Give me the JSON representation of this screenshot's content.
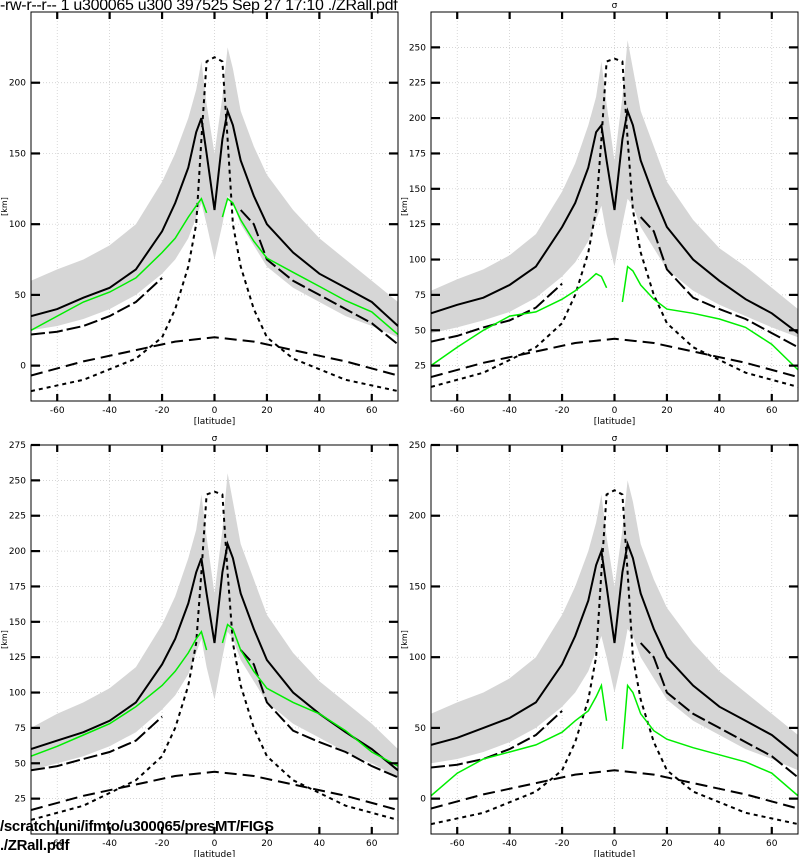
{
  "header": "-rw-r--r-- 1 u300065 u300 397525 Sep 27 17:10 ./ZRall.pdf",
  "footer_path": "/scratch/uni/ifmto/u300065/presMT/FIGS",
  "footer_file": "./ZRall.pdf",
  "colors": {
    "model": "#000000",
    "obs": "#00ee00",
    "band": "#d6d6d6",
    "reference": "#000000"
  },
  "chart_data": [
    {
      "type": "line",
      "panel": "top-left",
      "title": "",
      "xlabel": "[latitude]",
      "ylabel": "[km]",
      "xlim": [
        -70,
        70
      ],
      "ylim": [
        -25,
        250
      ],
      "xticks": [
        -60,
        -40,
        -20,
        0,
        20,
        40,
        60
      ],
      "yticks": [
        0,
        50,
        100,
        150,
        200
      ],
      "grid": true,
      "x": [
        -70,
        -60,
        -50,
        -40,
        -30,
        -20,
        -15,
        -10,
        -7,
        -5,
        -3,
        0,
        3,
        5,
        7,
        10,
        15,
        20,
        30,
        40,
        50,
        60,
        70
      ],
      "band_upper": [
        60,
        68,
        75,
        85,
        100,
        130,
        150,
        175,
        195,
        215,
        185,
        150,
        190,
        225,
        210,
        180,
        155,
        135,
        110,
        90,
        75,
        60,
        45
      ],
      "band_lower": [
        25,
        28,
        33,
        40,
        50,
        65,
        75,
        90,
        105,
        115,
        100,
        75,
        100,
        120,
        115,
        100,
        85,
        70,
        55,
        45,
        35,
        28,
        20
      ],
      "model_mean": [
        35,
        40,
        48,
        55,
        68,
        95,
        115,
        140,
        165,
        175,
        150,
        110,
        160,
        180,
        170,
        145,
        120,
        100,
        80,
        65,
        55,
        45,
        28
      ],
      "model_lower": [
        22,
        24,
        28,
        35,
        45,
        62,
        null,
        null,
        null,
        null,
        null,
        null,
        null,
        null,
        null,
        110,
        100,
        75,
        60,
        50,
        40,
        30,
        15
      ],
      "obs": [
        25,
        35,
        45,
        52,
        62,
        80,
        90,
        105,
        113,
        118,
        108,
        null,
        105,
        118,
        115,
        103,
        88,
        76,
        66,
        56,
        46,
        38,
        22
      ],
      "reference_curves": [
        {
          "x": [
            -70,
            -50,
            -30,
            -20,
            -15,
            -10,
            -7,
            -5,
            -3,
            0,
            3,
            5,
            7,
            10,
            15,
            20,
            30,
            50,
            70
          ],
          "y": [
            -18,
            -10,
            5,
            20,
            40,
            70,
            100,
            160,
            215,
            218,
            215,
            160,
            100,
            70,
            40,
            20,
            5,
            -10,
            -18
          ]
        },
        {
          "x": [
            -70,
            -50,
            -30,
            -15,
            0,
            15,
            30,
            50,
            70
          ],
          "y": [
            -7,
            3,
            11,
            17,
            20,
            17,
            11,
            3,
            -7
          ]
        }
      ]
    },
    {
      "type": "line",
      "panel": "top-right",
      "title": "σ",
      "xlabel": "[latitude]",
      "ylabel": "[km]",
      "xlim": [
        -70,
        70
      ],
      "ylim": [
        0,
        275
      ],
      "xticks": [
        -60,
        -40,
        -20,
        0,
        20,
        40,
        60
      ],
      "yticks": [
        25,
        50,
        75,
        100,
        125,
        150,
        175,
        200,
        225,
        250
      ],
      "grid": true,
      "x": [
        -70,
        -60,
        -50,
        -40,
        -30,
        -20,
        -15,
        -10,
        -7,
        -5,
        -3,
        0,
        3,
        5,
        7,
        10,
        15,
        20,
        30,
        40,
        50,
        60,
        70
      ],
      "band_upper": [
        78,
        86,
        93,
        103,
        118,
        148,
        168,
        195,
        215,
        240,
        210,
        170,
        215,
        255,
        235,
        205,
        180,
        155,
        128,
        108,
        95,
        80,
        65
      ],
      "band_lower": [
        48,
        52,
        57,
        63,
        73,
        88,
        98,
        113,
        128,
        138,
        118,
        95,
        125,
        143,
        138,
        123,
        108,
        93,
        78,
        68,
        60,
        52,
        45
      ],
      "model_mean": [
        62,
        68,
        73,
        82,
        95,
        123,
        140,
        165,
        190,
        195,
        170,
        135,
        185,
        205,
        195,
        170,
        145,
        123,
        100,
        85,
        72,
        62,
        48
      ],
      "model_lower": [
        42,
        46,
        52,
        57,
        66,
        83,
        null,
        null,
        null,
        null,
        null,
        null,
        null,
        null,
        null,
        130,
        120,
        93,
        73,
        65,
        58,
        48,
        38
      ],
      "obs": [
        25,
        38,
        50,
        60,
        63,
        72,
        78,
        85,
        90,
        88,
        80,
        null,
        70,
        95,
        92,
        82,
        72,
        65,
        62,
        58,
        52,
        40,
        22
      ],
      "reference_curves": [
        {
          "x": [
            -70,
            -50,
            -30,
            -20,
            -15,
            -10,
            -7,
            -5,
            -3,
            0,
            3,
            5,
            7,
            10,
            15,
            20,
            30,
            50,
            70
          ],
          "y": [
            10,
            20,
            38,
            55,
            75,
            105,
            135,
            185,
            240,
            242,
            240,
            185,
            135,
            105,
            75,
            55,
            38,
            20,
            10
          ]
        },
        {
          "x": [
            -70,
            -50,
            -30,
            -15,
            0,
            15,
            30,
            50,
            70
          ],
          "y": [
            17,
            27,
            35,
            41,
            44,
            41,
            35,
            27,
            17
          ]
        }
      ]
    },
    {
      "type": "line",
      "panel": "bottom-left",
      "title": "σ",
      "xlabel": "[latitude]",
      "ylabel": "[km]",
      "xlim": [
        -70,
        70
      ],
      "ylim": [
        0,
        275
      ],
      "xticks": [
        -60,
        -40,
        -20,
        0,
        20,
        40,
        60
      ],
      "yticks": [
        25,
        50,
        75,
        100,
        125,
        150,
        175,
        200,
        225,
        250,
        275
      ],
      "grid": true,
      "x": [
        -70,
        -60,
        -50,
        -40,
        -30,
        -20,
        -15,
        -10,
        -7,
        -5,
        -3,
        0,
        3,
        5,
        7,
        10,
        15,
        20,
        30,
        40,
        50,
        60,
        70
      ],
      "band_upper": [
        75,
        85,
        93,
        103,
        118,
        148,
        168,
        195,
        215,
        240,
        210,
        170,
        215,
        255,
        235,
        205,
        180,
        155,
        128,
        108,
        93,
        78,
        60
      ],
      "band_lower": [
        45,
        50,
        55,
        62,
        72,
        88,
        98,
        113,
        128,
        138,
        118,
        95,
        125,
        143,
        138,
        123,
        108,
        93,
        78,
        68,
        58,
        50,
        40
      ],
      "model_mean": [
        60,
        66,
        72,
        80,
        93,
        120,
        138,
        163,
        185,
        195,
        170,
        135,
        185,
        205,
        195,
        170,
        145,
        123,
        100,
        85,
        72,
        60,
        45
      ],
      "model_lower": [
        45,
        48,
        53,
        58,
        66,
        83,
        null,
        null,
        null,
        null,
        null,
        null,
        null,
        null,
        null,
        130,
        120,
        93,
        73,
        65,
        58,
        48,
        40
      ],
      "obs": [
        55,
        62,
        70,
        78,
        90,
        105,
        115,
        128,
        138,
        143,
        130,
        null,
        135,
        148,
        145,
        130,
        115,
        103,
        93,
        85,
        73,
        58,
        48
      ],
      "reference_curves": [
        {
          "x": [
            -70,
            -50,
            -30,
            -20,
            -15,
            -10,
            -7,
            -5,
            -3,
            0,
            3,
            5,
            7,
            10,
            15,
            20,
            30,
            50,
            70
          ],
          "y": [
            10,
            20,
            38,
            55,
            75,
            105,
            135,
            185,
            240,
            242,
            240,
            185,
            135,
            105,
            75,
            55,
            38,
            20,
            10
          ]
        },
        {
          "x": [
            -70,
            -50,
            -30,
            -15,
            0,
            15,
            30,
            50,
            70
          ],
          "y": [
            17,
            27,
            35,
            41,
            44,
            41,
            35,
            27,
            17
          ]
        }
      ]
    },
    {
      "type": "line",
      "panel": "bottom-right",
      "title": "σ",
      "xlabel": "[latitude]",
      "ylabel": "[km]",
      "xlim": [
        -70,
        70
      ],
      "ylim": [
        -25,
        250
      ],
      "xticks": [
        -60,
        -40,
        -20,
        0,
        20,
        40,
        60
      ],
      "yticks": [
        0,
        50,
        100,
        150,
        200,
        250
      ],
      "grid": true,
      "x": [
        -70,
        -60,
        -50,
        -40,
        -30,
        -20,
        -15,
        -10,
        -7,
        -5,
        -3,
        0,
        3,
        5,
        7,
        10,
        15,
        20,
        30,
        40,
        50,
        60,
        70
      ],
      "band_upper": [
        60,
        68,
        75,
        85,
        100,
        130,
        150,
        175,
        195,
        215,
        185,
        150,
        190,
        225,
        210,
        180,
        155,
        135,
        110,
        90,
        75,
        60,
        45
      ],
      "band_lower": [
        25,
        28,
        33,
        40,
        50,
        65,
        75,
        90,
        105,
        115,
        100,
        75,
        100,
        120,
        115,
        100,
        85,
        70,
        55,
        45,
        35,
        28,
        20
      ],
      "model_mean": [
        38,
        43,
        50,
        57,
        68,
        95,
        115,
        140,
        165,
        175,
        150,
        110,
        160,
        180,
        170,
        145,
        120,
        100,
        80,
        65,
        55,
        45,
        30
      ],
      "model_lower": [
        22,
        24,
        28,
        35,
        45,
        62,
        null,
        null,
        null,
        null,
        null,
        null,
        null,
        null,
        null,
        110,
        100,
        75,
        60,
        50,
        40,
        30,
        15
      ],
      "obs": [
        2,
        18,
        28,
        33,
        38,
        47,
        55,
        62,
        72,
        80,
        55,
        null,
        35,
        80,
        75,
        60,
        48,
        42,
        36,
        31,
        26,
        18,
        2
      ],
      "reference_curves": [
        {
          "x": [
            -70,
            -50,
            -30,
            -20,
            -15,
            -10,
            -7,
            -5,
            -3,
            0,
            3,
            5,
            7,
            10,
            15,
            20,
            30,
            50,
            70
          ],
          "y": [
            -18,
            -10,
            5,
            20,
            40,
            70,
            100,
            160,
            215,
            218,
            215,
            160,
            100,
            70,
            40,
            20,
            5,
            -10,
            -18
          ]
        },
        {
          "x": [
            -70,
            -50,
            -30,
            -15,
            0,
            15,
            30,
            50,
            70
          ],
          "y": [
            -7,
            3,
            11,
            17,
            20,
            17,
            11,
            3,
            -7
          ]
        }
      ]
    }
  ]
}
